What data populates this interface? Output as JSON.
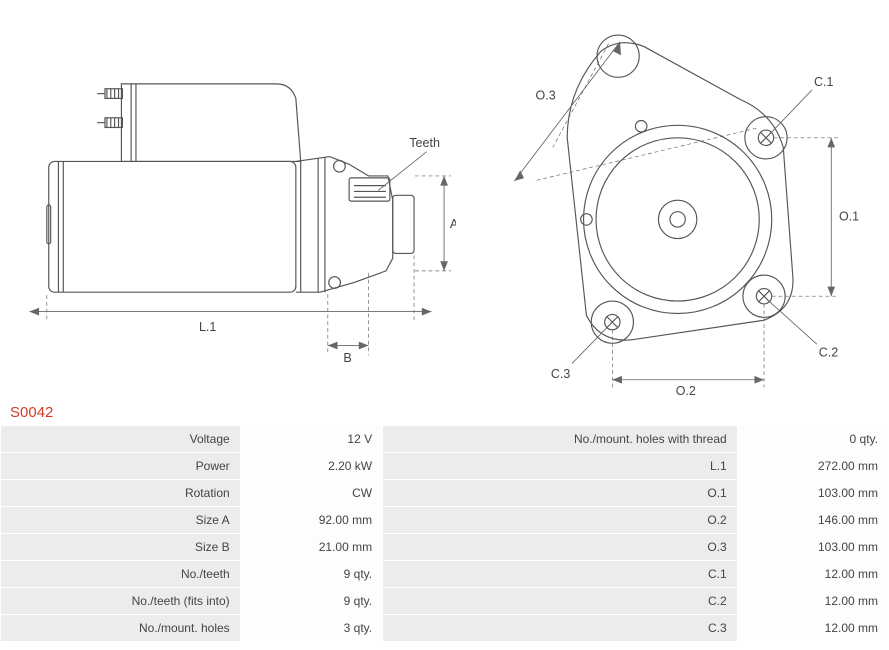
{
  "part_number": "S0042",
  "part_number_color": "#d13a2a",
  "diagram": {
    "teeth_label": "Teeth",
    "dims_left": {
      "L1": "L.1",
      "A": "A",
      "B": "B"
    },
    "dims_right": {
      "O1": "O.1",
      "O2": "O.2",
      "O3": "O.3",
      "C1": "C.1",
      "C2": "C.2",
      "C3": "C.3"
    },
    "stroke_color": "#555555",
    "dim_color": "#666666"
  },
  "specs_left": [
    {
      "label": "Voltage",
      "value": "12 V"
    },
    {
      "label": "Power",
      "value": "2.20 kW"
    },
    {
      "label": "Rotation",
      "value": "CW"
    },
    {
      "label": "Size A",
      "value": "92.00 mm"
    },
    {
      "label": "Size B",
      "value": "21.00 mm"
    },
    {
      "label": "No./teeth",
      "value": "9 qty."
    },
    {
      "label": "No./teeth (fits into)",
      "value": "9 qty."
    },
    {
      "label": "No./mount. holes",
      "value": "3 qty."
    }
  ],
  "specs_right": [
    {
      "label": "No./mount. holes with thread",
      "value": "0 qty."
    },
    {
      "label": "L.1",
      "value": "272.00 mm"
    },
    {
      "label": "O.1",
      "value": "103.00 mm"
    },
    {
      "label": "O.2",
      "value": "146.00 mm"
    },
    {
      "label": "O.3",
      "value": "103.00 mm"
    },
    {
      "label": "C.1",
      "value": "12.00 mm"
    },
    {
      "label": "C.2",
      "value": "12.00 mm"
    },
    {
      "label": "C.3",
      "value": "12.00 mm"
    }
  ]
}
